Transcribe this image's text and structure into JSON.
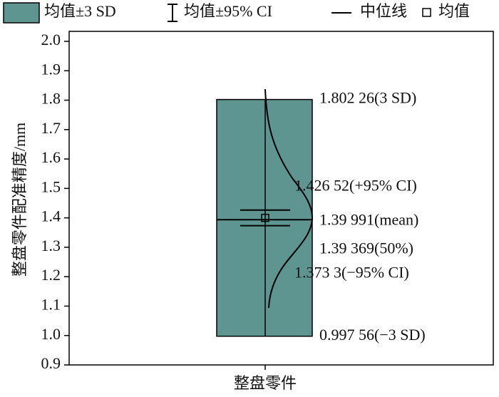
{
  "chart_data": {
    "type": "box",
    "legend": [
      "均值±3 SD",
      "均值±95% CI",
      "中位线",
      "均值"
    ],
    "ylabel": "整盘零件配准精度/mm",
    "categories": [
      "整盘零件"
    ],
    "color": "#5f9591",
    "ylim": [
      0.9,
      2.0
    ],
    "yticks": [
      0.9,
      {
        "value": 1.0,
        "label": "1.0"
      },
      1.1,
      1.2,
      1.3,
      1.4,
      1.5,
      1.6,
      1.7,
      1.8,
      1.9,
      {
        "value": 2.0,
        "label": "2.0"
      }
    ],
    "box": {
      "upper": 1.80226,
      "ci_upper": 1.42652,
      "mean": 1.39991,
      "median": 1.39369,
      "ci_lower": 1.3733,
      "lower": 0.99756,
      "value_labels": {
        "upper": "1.802 26(3  SD)",
        "ci_upper": "1.426 52(+95%  CI)",
        "mean": "1.39 991(mean)",
        "median": "1.39 369(50%)",
        "ci_lower": "1.373 3(−95%  CI)",
        "lower": "0.997 56(−3  SD)"
      }
    }
  }
}
